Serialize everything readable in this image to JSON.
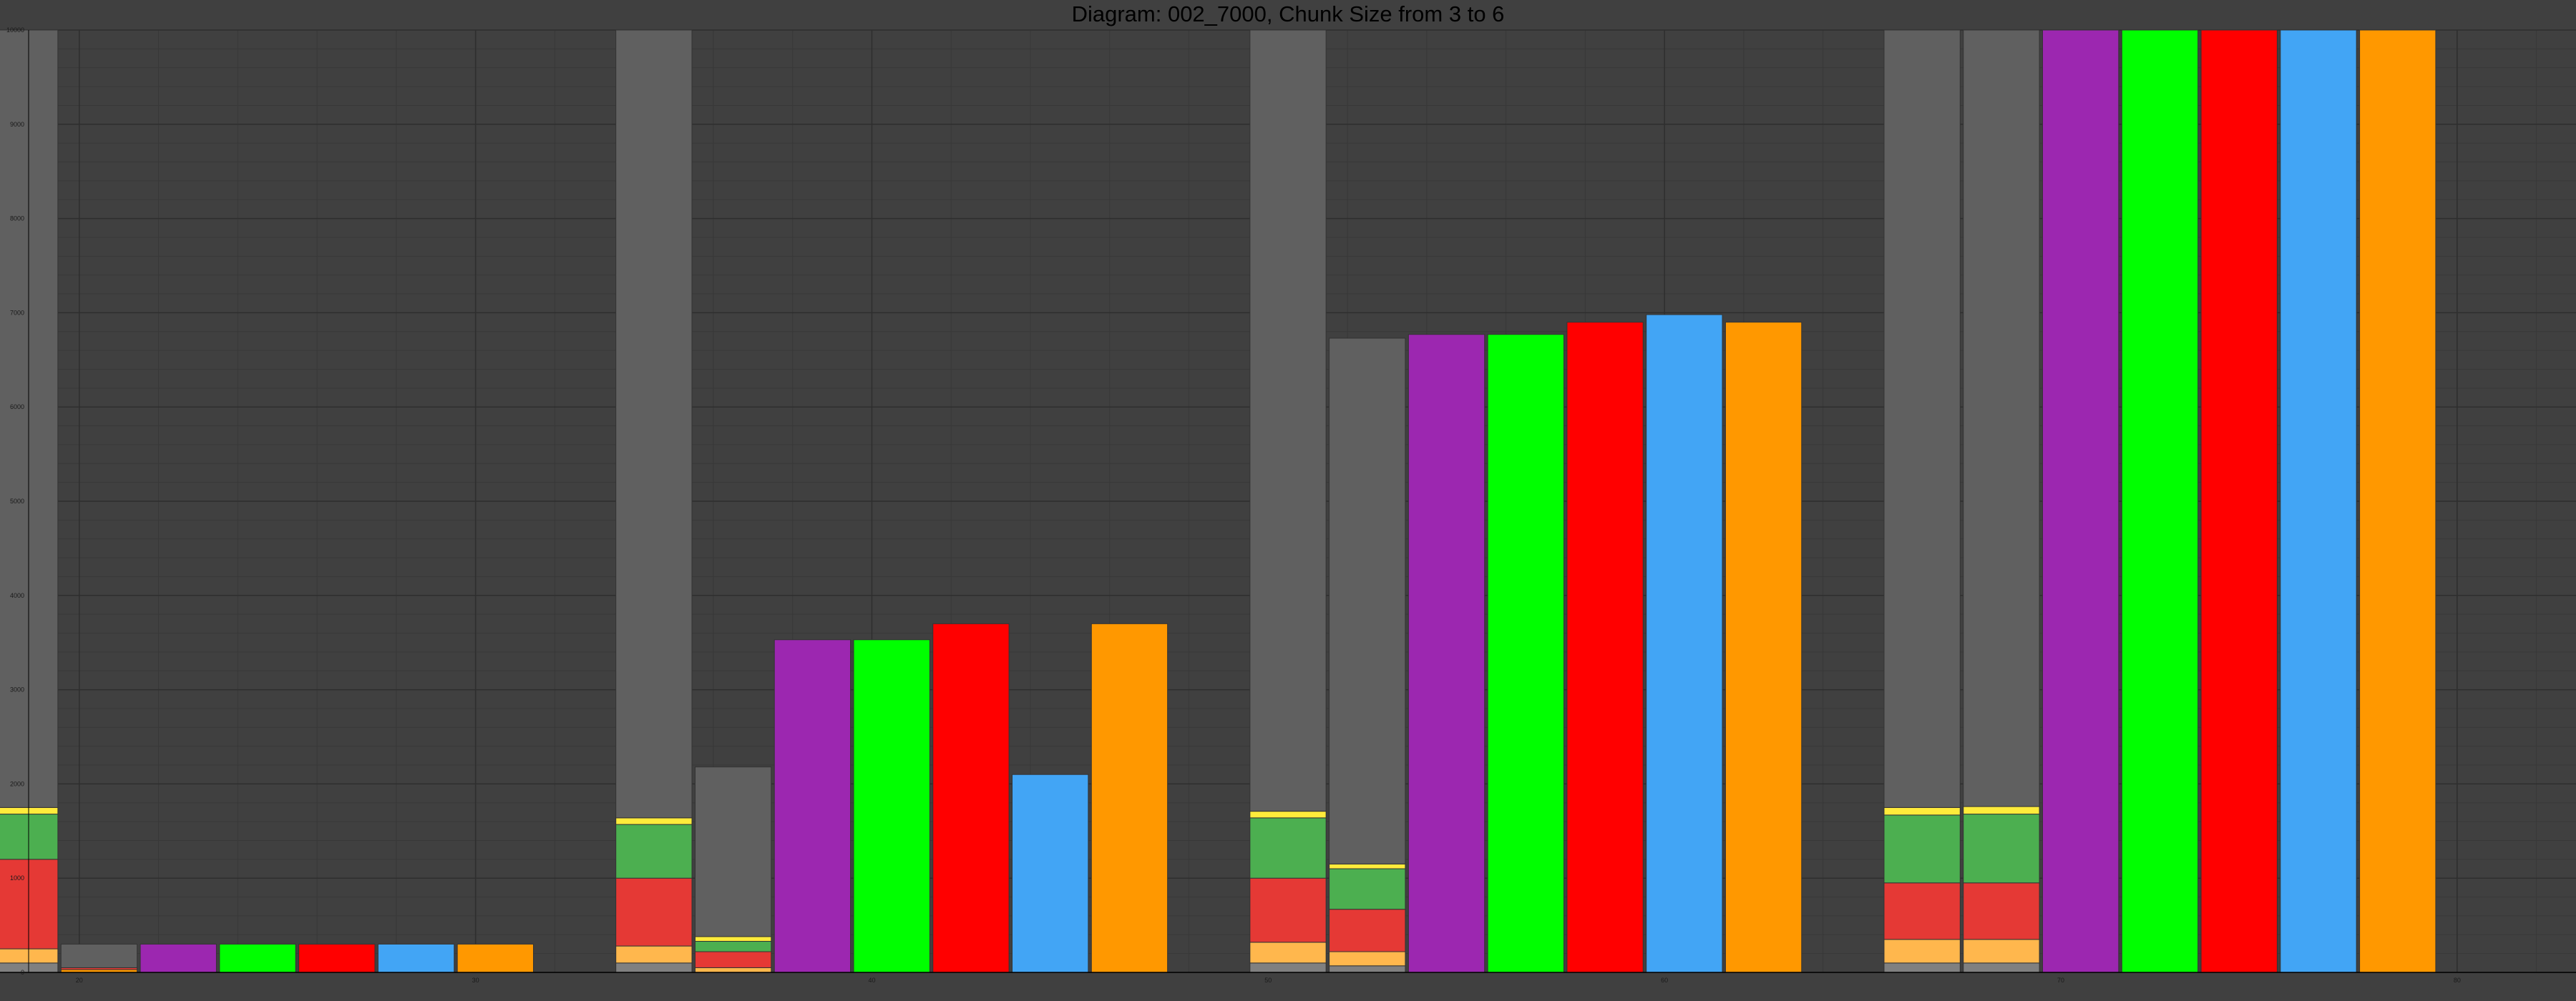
{
  "title": "Diagram: 002_7000, Chunk Size from 3 to 6",
  "chart_data": {
    "type": "bar",
    "title": "Diagram: 002_7000, Chunk Size from 3 to 6",
    "xlabel": "",
    "ylabel": "",
    "xlim": [
      18,
      83
    ],
    "ylim": [
      0,
      10000
    ],
    "x_ticks": [
      20,
      30,
      40,
      50,
      60,
      70,
      80
    ],
    "y_ticks": [
      0,
      1000,
      2000,
      3000,
      4000,
      5000,
      6000,
      7000,
      8000,
      9000,
      10000
    ],
    "grid": true,
    "legend": "none",
    "colors": {
      "background": "#404040",
      "grid_major": "#2e2e2e",
      "grid_minor": "#383838",
      "baseline_gray": "#606060",
      "segment_dark_gray": "#808080",
      "segment_light_orange": "#ffb74d",
      "segment_red": "#e53935",
      "segment_green": "#4caf50",
      "segment_yellow": "#ffeb3b",
      "purple": "#9c27b0",
      "green": "#00ff00",
      "red": "#ff0000",
      "blue": "#42a5f5",
      "orange": "#ff9800"
    },
    "groups": [
      {
        "bars": [
          {
            "color": "#606060",
            "segments": [
              {
                "value": 100,
                "color": "#808080"
              },
              {
                "value": 150,
                "color": "#ffb74d"
              },
              {
                "value": 950,
                "color": "#e53935"
              },
              {
                "value": 480,
                "color": "#4caf50"
              },
              {
                "value": 70,
                "color": "#ffeb3b"
              },
              {
                "value": 8250,
                "color": "#606060"
              }
            ]
          },
          {
            "color": "#606060",
            "segments": [
              {
                "value": 30,
                "color": "#ff9800"
              },
              {
                "value": 20,
                "color": "#e53935"
              },
              {
                "value": 250,
                "color": "#606060"
              }
            ]
          },
          {
            "color": "#9c27b0",
            "segments": [
              {
                "value": 300,
                "color": "#9c27b0"
              }
            ]
          },
          {
            "color": "#00ff00",
            "segments": [
              {
                "value": 300,
                "color": "#00ff00"
              }
            ]
          },
          {
            "color": "#ff0000",
            "segments": [
              {
                "value": 300,
                "color": "#ff0000"
              }
            ]
          },
          {
            "color": "#42a5f5",
            "segments": [
              {
                "value": 300,
                "color": "#42a5f5"
              }
            ]
          },
          {
            "color": "#ff9800",
            "segments": [
              {
                "value": 300,
                "color": "#ff9800"
              }
            ]
          }
        ]
      },
      {
        "bars": [
          {
            "color": "#606060",
            "segments": [
              {
                "value": 100,
                "color": "#808080"
              },
              {
                "value": 180,
                "color": "#ffb74d"
              },
              {
                "value": 720,
                "color": "#e53935"
              },
              {
                "value": 570,
                "color": "#4caf50"
              },
              {
                "value": 70,
                "color": "#ffeb3b"
              },
              {
                "value": 8360,
                "color": "#606060"
              }
            ]
          },
          {
            "color": "#606060",
            "segments": [
              {
                "value": 50,
                "color": "#ffb74d"
              },
              {
                "value": 170,
                "color": "#e53935"
              },
              {
                "value": 110,
                "color": "#4caf50"
              },
              {
                "value": 50,
                "color": "#ffeb3b"
              },
              {
                "value": 1800,
                "color": "#606060"
              }
            ]
          },
          {
            "color": "#9c27b0",
            "segments": [
              {
                "value": 3530,
                "color": "#9c27b0"
              }
            ]
          },
          {
            "color": "#00ff00",
            "segments": [
              {
                "value": 3530,
                "color": "#00ff00"
              }
            ]
          },
          {
            "color": "#ff0000",
            "segments": [
              {
                "value": 3700,
                "color": "#ff0000"
              }
            ]
          },
          {
            "color": "#42a5f5",
            "segments": [
              {
                "value": 2100,
                "color": "#42a5f5"
              }
            ]
          },
          {
            "color": "#ff9800",
            "segments": [
              {
                "value": 3700,
                "color": "#ff9800"
              }
            ]
          }
        ]
      },
      {
        "bars": [
          {
            "color": "#606060",
            "segments": [
              {
                "value": 100,
                "color": "#808080"
              },
              {
                "value": 220,
                "color": "#ffb74d"
              },
              {
                "value": 680,
                "color": "#e53935"
              },
              {
                "value": 640,
                "color": "#4caf50"
              },
              {
                "value": 70,
                "color": "#ffeb3b"
              },
              {
                "value": 8290,
                "color": "#606060"
              }
            ]
          },
          {
            "color": "#606060",
            "segments": [
              {
                "value": 70,
                "color": "#808080"
              },
              {
                "value": 150,
                "color": "#ffb74d"
              },
              {
                "value": 450,
                "color": "#e53935"
              },
              {
                "value": 430,
                "color": "#4caf50"
              },
              {
                "value": 50,
                "color": "#ffeb3b"
              },
              {
                "value": 5580,
                "color": "#606060"
              }
            ]
          },
          {
            "color": "#9c27b0",
            "segments": [
              {
                "value": 6770,
                "color": "#9c27b0"
              }
            ]
          },
          {
            "color": "#00ff00",
            "segments": [
              {
                "value": 6770,
                "color": "#00ff00"
              }
            ]
          },
          {
            "color": "#ff0000",
            "segments": [
              {
                "value": 6900,
                "color": "#ff0000"
              }
            ]
          },
          {
            "color": "#42a5f5",
            "segments": [
              {
                "value": 6980,
                "color": "#42a5f5"
              }
            ]
          },
          {
            "color": "#ff9800",
            "segments": [
              {
                "value": 6900,
                "color": "#ff9800"
              }
            ]
          }
        ]
      },
      {
        "bars": [
          {
            "color": "#606060",
            "segments": [
              {
                "value": 100,
                "color": "#808080"
              },
              {
                "value": 250,
                "color": "#ffb74d"
              },
              {
                "value": 600,
                "color": "#e53935"
              },
              {
                "value": 720,
                "color": "#4caf50"
              },
              {
                "value": 80,
                "color": "#ffeb3b"
              },
              {
                "value": 8250,
                "color": "#606060"
              }
            ]
          },
          {
            "color": "#606060",
            "segments": [
              {
                "value": 100,
                "color": "#808080"
              },
              {
                "value": 250,
                "color": "#ffb74d"
              },
              {
                "value": 600,
                "color": "#e53935"
              },
              {
                "value": 730,
                "color": "#4caf50"
              },
              {
                "value": 80,
                "color": "#ffeb3b"
              },
              {
                "value": 8240,
                "color": "#606060"
              }
            ]
          },
          {
            "color": "#9c27b0",
            "segments": [
              {
                "value": 10000,
                "color": "#9c27b0"
              }
            ]
          },
          {
            "color": "#00ff00",
            "segments": [
              {
                "value": 10000,
                "color": "#00ff00"
              }
            ]
          },
          {
            "color": "#ff0000",
            "segments": [
              {
                "value": 10000,
                "color": "#ff0000"
              }
            ]
          },
          {
            "color": "#42a5f5",
            "segments": [
              {
                "value": 10000,
                "color": "#42a5f5"
              }
            ]
          },
          {
            "color": "#ff9800",
            "segments": [
              {
                "value": 10000,
                "color": "#ff9800"
              }
            ]
          }
        ]
      }
    ]
  }
}
